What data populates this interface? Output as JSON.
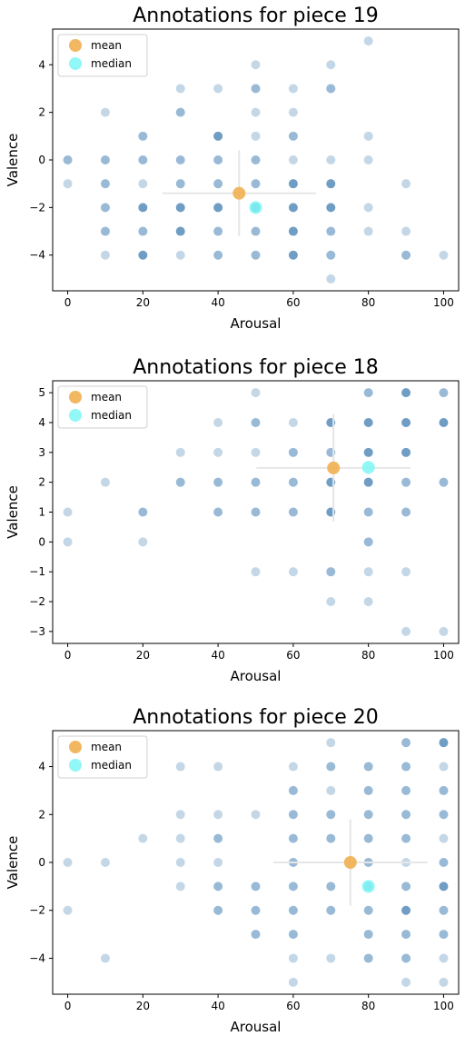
{
  "colors": {
    "points": "#4682b4",
    "mean": "#f0b050",
    "median": "#7ef6f6",
    "errorbar": "#e6e6e6",
    "axis": "#000000"
  },
  "chart_data": [
    {
      "type": "scatter",
      "title": "Annotations for piece 19",
      "xlabel": "Arousal",
      "ylabel": "Valence",
      "xlim": [
        -4,
        104
      ],
      "ylim": [
        -5.5,
        5.5
      ],
      "xticks": [
        0,
        20,
        40,
        60,
        80,
        100
      ],
      "yticks": [
        -4,
        -2,
        0,
        2,
        4
      ],
      "legend": {
        "position": "top-left",
        "entries": [
          "mean",
          "median"
        ]
      },
      "points": [
        [
          0,
          0,
          2
        ],
        [
          0,
          -1,
          1
        ],
        [
          10,
          2,
          1
        ],
        [
          10,
          0,
          2
        ],
        [
          10,
          -1,
          2
        ],
        [
          10,
          -2,
          2
        ],
        [
          10,
          -3,
          2
        ],
        [
          10,
          -4,
          1
        ],
        [
          20,
          1,
          2
        ],
        [
          20,
          0,
          2
        ],
        [
          20,
          -1,
          1
        ],
        [
          20,
          -2,
          3
        ],
        [
          20,
          -3,
          2
        ],
        [
          20,
          -4,
          3
        ],
        [
          30,
          3,
          1
        ],
        [
          30,
          2,
          2
        ],
        [
          30,
          0,
          2
        ],
        [
          30,
          -1,
          2
        ],
        [
          30,
          -2,
          3
        ],
        [
          30,
          -3,
          3
        ],
        [
          30,
          -4,
          1
        ],
        [
          40,
          3,
          1
        ],
        [
          40,
          1,
          3
        ],
        [
          40,
          0,
          2
        ],
        [
          40,
          -1,
          2
        ],
        [
          40,
          -2,
          3
        ],
        [
          40,
          -3,
          2
        ],
        [
          40,
          -4,
          2
        ],
        [
          50,
          4,
          1
        ],
        [
          50,
          3,
          2
        ],
        [
          50,
          2,
          1
        ],
        [
          50,
          1,
          1
        ],
        [
          50,
          0,
          2
        ],
        [
          50,
          -1,
          2
        ],
        [
          50,
          -2,
          3
        ],
        [
          50,
          -3,
          2
        ],
        [
          50,
          -4,
          2
        ],
        [
          60,
          3,
          1
        ],
        [
          60,
          2,
          1
        ],
        [
          60,
          1,
          2
        ],
        [
          60,
          0,
          1
        ],
        [
          60,
          -1,
          3
        ],
        [
          60,
          -2,
          3
        ],
        [
          60,
          -3,
          3
        ],
        [
          60,
          -4,
          3
        ],
        [
          70,
          4,
          1
        ],
        [
          70,
          3,
          2
        ],
        [
          70,
          0,
          1
        ],
        [
          70,
          -1,
          3
        ],
        [
          70,
          -2,
          3
        ],
        [
          70,
          -3,
          2
        ],
        [
          70,
          -4,
          2
        ],
        [
          70,
          -5,
          1
        ],
        [
          80,
          5,
          1
        ],
        [
          80,
          1,
          1
        ],
        [
          80,
          0,
          1
        ],
        [
          80,
          -2,
          1
        ],
        [
          80,
          -3,
          1
        ],
        [
          90,
          -1,
          1
        ],
        [
          90,
          -3,
          1
        ],
        [
          90,
          -4,
          2
        ],
        [
          100,
          -4,
          1
        ]
      ],
      "mean": {
        "x": 45.6,
        "y": -1.4,
        "x_err": 20.5,
        "y_err": 1.8
      },
      "median": {
        "x": 50,
        "y": -2
      }
    },
    {
      "type": "scatter",
      "title": "Annotations for piece 18",
      "xlabel": "Arousal",
      "ylabel": "Valence",
      "xlim": [
        -4,
        104
      ],
      "ylim": [
        -3.4,
        5.4
      ],
      "xticks": [
        0,
        20,
        40,
        60,
        80,
        100
      ],
      "yticks": [
        -3,
        -2,
        -1,
        0,
        1,
        2,
        3,
        4,
        5
      ],
      "legend": {
        "position": "top-left",
        "entries": [
          "mean",
          "median"
        ]
      },
      "points": [
        [
          0,
          1,
          1
        ],
        [
          0,
          0,
          1
        ],
        [
          10,
          2,
          1
        ],
        [
          20,
          1,
          2
        ],
        [
          20,
          0,
          1
        ],
        [
          30,
          3,
          1
        ],
        [
          30,
          2,
          2
        ],
        [
          40,
          4,
          1
        ],
        [
          40,
          3,
          1
        ],
        [
          40,
          2,
          2
        ],
        [
          40,
          1,
          2
        ],
        [
          50,
          5,
          1
        ],
        [
          50,
          4,
          2
        ],
        [
          50,
          3,
          1
        ],
        [
          50,
          2,
          2
        ],
        [
          50,
          1,
          2
        ],
        [
          50,
          -1,
          1
        ],
        [
          60,
          4,
          1
        ],
        [
          60,
          3,
          2
        ],
        [
          60,
          2,
          2
        ],
        [
          60,
          1,
          2
        ],
        [
          60,
          -1,
          1
        ],
        [
          70,
          4,
          3
        ],
        [
          70,
          3,
          2
        ],
        [
          70,
          2,
          3
        ],
        [
          70,
          1,
          3
        ],
        [
          70,
          -1,
          2
        ],
        [
          70,
          -2,
          1
        ],
        [
          80,
          5,
          2
        ],
        [
          80,
          4,
          3
        ],
        [
          80,
          3,
          3
        ],
        [
          80,
          2,
          3
        ],
        [
          80,
          1,
          2
        ],
        [
          80,
          0,
          2
        ],
        [
          80,
          -1,
          1
        ],
        [
          80,
          -2,
          1
        ],
        [
          90,
          5,
          3
        ],
        [
          90,
          4,
          3
        ],
        [
          90,
          3,
          3
        ],
        [
          90,
          2,
          2
        ],
        [
          90,
          1,
          2
        ],
        [
          90,
          -1,
          1
        ],
        [
          90,
          -3,
          1
        ],
        [
          100,
          5,
          2
        ],
        [
          100,
          4,
          3
        ],
        [
          100,
          2,
          2
        ],
        [
          100,
          -3,
          1
        ]
      ],
      "mean": {
        "x": 70.7,
        "y": 2.48,
        "x_err": 20.5,
        "y_err": 1.8
      },
      "median": {
        "x": 80,
        "y": 2.5
      }
    },
    {
      "type": "scatter",
      "title": "Annotations for piece 20",
      "xlabel": "Arousal",
      "ylabel": "Valence",
      "xlim": [
        -4,
        104
      ],
      "ylim": [
        -5.5,
        5.5
      ],
      "xticks": [
        0,
        20,
        40,
        60,
        80,
        100
      ],
      "yticks": [
        -4,
        -2,
        0,
        2,
        4
      ],
      "legend": {
        "position": "top-left",
        "entries": [
          "mean",
          "median"
        ]
      },
      "points": [
        [
          0,
          0,
          1
        ],
        [
          0,
          -2,
          1
        ],
        [
          10,
          0,
          1
        ],
        [
          10,
          -4,
          1
        ],
        [
          20,
          1,
          1
        ],
        [
          30,
          4,
          1
        ],
        [
          30,
          2,
          1
        ],
        [
          30,
          1,
          1
        ],
        [
          30,
          0,
          1
        ],
        [
          30,
          -1,
          1
        ],
        [
          40,
          4,
          1
        ],
        [
          40,
          2,
          1
        ],
        [
          40,
          1,
          2
        ],
        [
          40,
          0,
          1
        ],
        [
          40,
          -1,
          2
        ],
        [
          40,
          -2,
          2
        ],
        [
          50,
          2,
          1
        ],
        [
          50,
          -1,
          2
        ],
        [
          50,
          -2,
          2
        ],
        [
          50,
          -3,
          2
        ],
        [
          60,
          4,
          1
        ],
        [
          60,
          3,
          2
        ],
        [
          60,
          2,
          2
        ],
        [
          60,
          1,
          2
        ],
        [
          60,
          0,
          2
        ],
        [
          60,
          -1,
          2
        ],
        [
          60,
          -2,
          2
        ],
        [
          60,
          -3,
          2
        ],
        [
          60,
          -4,
          1
        ],
        [
          60,
          -5,
          1
        ],
        [
          70,
          5,
          1
        ],
        [
          70,
          4,
          2
        ],
        [
          70,
          3,
          1
        ],
        [
          70,
          2,
          2
        ],
        [
          70,
          1,
          2
        ],
        [
          70,
          -1,
          2
        ],
        [
          70,
          -2,
          2
        ],
        [
          70,
          -4,
          1
        ],
        [
          80,
          4,
          2
        ],
        [
          80,
          3,
          2
        ],
        [
          80,
          2,
          2
        ],
        [
          80,
          1,
          2
        ],
        [
          80,
          0,
          2
        ],
        [
          80,
          -1,
          2
        ],
        [
          80,
          -2,
          2
        ],
        [
          80,
          -3,
          2
        ],
        [
          80,
          -4,
          2
        ],
        [
          90,
          5,
          2
        ],
        [
          90,
          4,
          2
        ],
        [
          90,
          3,
          2
        ],
        [
          90,
          2,
          2
        ],
        [
          90,
          1,
          2
        ],
        [
          90,
          0,
          1
        ],
        [
          90,
          -1,
          2
        ],
        [
          90,
          -2,
          3
        ],
        [
          90,
          -3,
          2
        ],
        [
          90,
          -4,
          2
        ],
        [
          90,
          -5,
          1
        ],
        [
          100,
          5,
          3
        ],
        [
          100,
          4,
          1
        ],
        [
          100,
          3,
          2
        ],
        [
          100,
          2,
          2
        ],
        [
          100,
          1,
          1
        ],
        [
          100,
          0,
          2
        ],
        [
          100,
          -1,
          3
        ],
        [
          100,
          -2,
          2
        ],
        [
          100,
          -3,
          2
        ],
        [
          100,
          -4,
          1
        ],
        [
          100,
          -5,
          1
        ]
      ],
      "mean": {
        "x": 75.2,
        "y": 0,
        "x_err": 20.5,
        "y_err": 1.8
      },
      "median": {
        "x": 80,
        "y": -1
      }
    }
  ]
}
